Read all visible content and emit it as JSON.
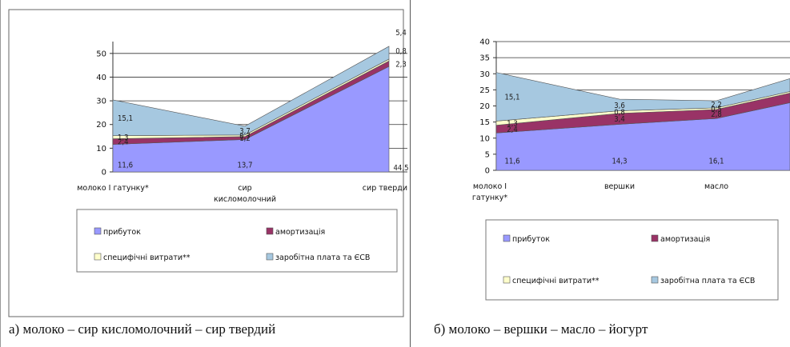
{
  "panels": [
    {
      "caption": "а) молоко – сир кисломолочний – сир твердий"
    },
    {
      "caption": "б) молоко – вершки – масло – йогурт"
    }
  ],
  "chart_data": [
    {
      "type": "area",
      "stacked": true,
      "categories": [
        [
          "молоко І гатунку*"
        ],
        [
          "сир",
          "кисломолочний"
        ],
        [
          "сир тверди"
        ]
      ],
      "series": [
        {
          "name": "прибуток",
          "values": [
            11.6,
            13.7,
            44.5
          ],
          "labels": [
            "11,6",
            "13,7",
            "44,5"
          ],
          "color": "#9999ff"
        },
        {
          "name": "амортизація",
          "values": [
            2.4,
            1.2,
            2.3
          ],
          "labels": [
            "2,4",
            "1,2",
            "2,3"
          ],
          "color": "#993366"
        },
        {
          "name": "специфічні витрати**",
          "values": [
            1.3,
            0.7,
            0.8
          ],
          "labels": [
            "1,3",
            "0,7",
            "0,8"
          ],
          "color": "#ffffcc"
        },
        {
          "name": "заробітна плата та ЄСВ",
          "values": [
            15.1,
            3.7,
            5.4
          ],
          "labels": [
            "15,1",
            "3,7",
            "5,4"
          ],
          "color": "#a6c8e0"
        }
      ],
      "ylim": [
        0,
        55
      ],
      "yticks": [
        0,
        10,
        20,
        30,
        40,
        50
      ],
      "grid": true,
      "legend": "bottom"
    },
    {
      "type": "area",
      "stacked": true,
      "categories": [
        [
          "молоко І",
          "гатунку*"
        ],
        [
          "вершки"
        ],
        [
          "масло"
        ],
        [
          ""
        ]
      ],
      "series": [
        {
          "name": "прибуток",
          "values": [
            11.6,
            14.3,
            16.1,
            21
          ],
          "labels": [
            "11,6",
            "14,3",
            "16,1",
            ""
          ],
          "color": "#9999ff"
        },
        {
          "name": "амортизація",
          "values": [
            2.4,
            3.4,
            2.8,
            3
          ],
          "labels": [
            "2,4",
            "3,4",
            "2,8",
            ""
          ],
          "color": "#993366"
        },
        {
          "name": "специфічні витрати**",
          "values": [
            1.3,
            0.8,
            0.5,
            0.5
          ],
          "labels": [
            "1,3",
            "0,8",
            "0,5",
            ""
          ],
          "color": "#ffffcc"
        },
        {
          "name": "заробітна плата та ЄСВ",
          "values": [
            15.1,
            3.6,
            2.2,
            4
          ],
          "labels": [
            "15,1",
            "3,6",
            "2,2",
            ""
          ],
          "color": "#a6c8e0"
        }
      ],
      "ylim": [
        0,
        40
      ],
      "yticks": [
        0,
        5,
        10,
        15,
        20,
        25,
        30,
        35,
        40
      ],
      "grid": true,
      "legend": "bottom"
    }
  ]
}
